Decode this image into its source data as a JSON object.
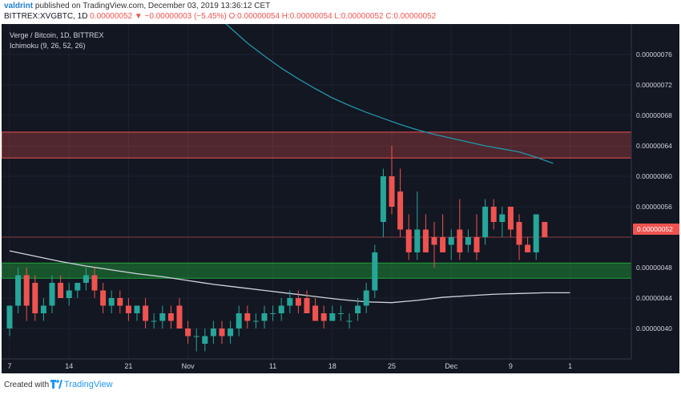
{
  "header": {
    "author": "valdrint",
    "published": "published on TradingView.com, December 03, 2019 13:36:12 CET",
    "quote_prefix": "BITTREX:XVGBTC, 1D",
    "quote_change": "0.00000052 ▼ −0.00000003 (−5.45%)",
    "quote_ohlc": "O:0.00000054 H:0.00000054 L:0.00000052 C:0.00000052"
  },
  "legend": {
    "symbol_line": "Verge / Bitcoin, 1D, BITTREX",
    "indicator_line": "Ichimoku (9, 26, 52, 26)"
  },
  "price_axis": {
    "labels": [
      "0.00000076",
      "0.00000072",
      "0.00000068",
      "0.00000064",
      "0.00000060",
      "0.00000056",
      "0.00000048",
      "0.00000044",
      "0.00000040"
    ],
    "current_price": "0.00000052"
  },
  "time_axis": {
    "labels": [
      "7",
      "14",
      "21",
      "Nov",
      "11",
      "18",
      "25",
      "Dec",
      "9",
      "1"
    ]
  },
  "footer": {
    "created_with": "Created with",
    "brand": "TradingView"
  },
  "colors": {
    "background": "#131722",
    "up": "#26a69a",
    "down": "#ef5350",
    "resistance_zone": "#ef5350",
    "support_zone": "#1fa23a",
    "ma_long": "#2196a8",
    "ma_short": "#d1d4dc"
  },
  "chart_data": {
    "type": "candlestick",
    "title": "Verge / Bitcoin, 1D, BITTREX",
    "ylim": [
      3.6e-07,
      8e-07
    ],
    "zones": [
      {
        "kind": "resistance",
        "y_low": 6.24e-07,
        "y_high": 6.58e-07
      },
      {
        "kind": "support",
        "y_low": 4.66e-07,
        "y_high": 4.86e-07
      }
    ],
    "candles": [
      {
        "o": 4e-07,
        "h": 4.3e-07,
        "l": 3.9e-07,
        "c": 4.3e-07
      },
      {
        "o": 4.3e-07,
        "h": 4.8e-07,
        "l": 4.2e-07,
        "c": 4.7e-07
      },
      {
        "o": 4.7e-07,
        "h": 4.8e-07,
        "l": 4.1e-07,
        "c": 4.3e-07
      },
      {
        "o": 4.6e-07,
        "h": 4.7e-07,
        "l": 4.1e-07,
        "c": 4.2e-07
      },
      {
        "o": 4.2e-07,
        "h": 4.4e-07,
        "l": 4.1e-07,
        "c": 4.3e-07
      },
      {
        "o": 4.3e-07,
        "h": 4.7e-07,
        "l": 4.2e-07,
        "c": 4.6e-07
      },
      {
        "o": 4.6e-07,
        "h": 4.7e-07,
        "l": 4.4e-07,
        "c": 4.4e-07
      },
      {
        "o": 4.4e-07,
        "h": 4.6e-07,
        "l": 4.3e-07,
        "c": 4.5e-07
      },
      {
        "o": 4.5e-07,
        "h": 4.6e-07,
        "l": 4.4e-07,
        "c": 4.6e-07
      },
      {
        "o": 4.6e-07,
        "h": 4.8e-07,
        "l": 4.5e-07,
        "c": 4.7e-07
      },
      {
        "o": 4.7e-07,
        "h": 4.8e-07,
        "l": 4.4e-07,
        "c": 4.5e-07
      },
      {
        "o": 4.5e-07,
        "h": 4.6e-07,
        "l": 4.2e-07,
        "c": 4.3e-07
      },
      {
        "o": 4.3e-07,
        "h": 4.5e-07,
        "l": 4.2e-07,
        "c": 4.4e-07
      },
      {
        "o": 4.4e-07,
        "h": 4.5e-07,
        "l": 4.2e-07,
        "c": 4.3e-07
      },
      {
        "o": 4.3e-07,
        "h": 4.4e-07,
        "l": 4.1e-07,
        "c": 4.2e-07
      },
      {
        "o": 4.2e-07,
        "h": 4.3e-07,
        "l": 4.1e-07,
        "c": 4.3e-07
      },
      {
        "o": 4.3e-07,
        "h": 4.4e-07,
        "l": 4e-07,
        "c": 4.1e-07
      },
      {
        "o": 4.1e-07,
        "h": 4.2e-07,
        "l": 4e-07,
        "c": 4.1e-07
      },
      {
        "o": 4.1e-07,
        "h": 4.3e-07,
        "l": 4e-07,
        "c": 4.2e-07
      },
      {
        "o": 4.2e-07,
        "h": 4.3e-07,
        "l": 4e-07,
        "c": 4.1e-07
      },
      {
        "o": 4.3e-07,
        "h": 4.4e-07,
        "l": 4e-07,
        "c": 4e-07
      },
      {
        "o": 4e-07,
        "h": 4.1e-07,
        "l": 3.8e-07,
        "c": 3.9e-07
      },
      {
        "o": 3.9e-07,
        "h": 4e-07,
        "l": 3.7e-07,
        "c": 3.9e-07
      },
      {
        "o": 3.8e-07,
        "h": 4e-07,
        "l": 3.7e-07,
        "c": 3.9e-07
      },
      {
        "o": 3.9e-07,
        "h": 4.1e-07,
        "l": 3.8e-07,
        "c": 4e-07
      },
      {
        "o": 4e-07,
        "h": 4.1e-07,
        "l": 3.8e-07,
        "c": 3.9e-07
      },
      {
        "o": 3.9e-07,
        "h": 4.1e-07,
        "l": 3.8e-07,
        "c": 4e-07
      },
      {
        "o": 4e-07,
        "h": 4.3e-07,
        "l": 3.9e-07,
        "c": 4.2e-07
      },
      {
        "o": 4.2e-07,
        "h": 4.3e-07,
        "l": 4e-07,
        "c": 4.1e-07
      },
      {
        "o": 4.1e-07,
        "h": 4.2e-07,
        "l": 4e-07,
        "c": 4.1e-07
      },
      {
        "o": 4.1e-07,
        "h": 4.3e-07,
        "l": 4e-07,
        "c": 4.2e-07
      },
      {
        "o": 4.2e-07,
        "h": 4.3e-07,
        "l": 4.1e-07,
        "c": 4.2e-07
      },
      {
        "o": 4.2e-07,
        "h": 4.4e-07,
        "l": 4.1e-07,
        "c": 4.3e-07
      },
      {
        "o": 4.3e-07,
        "h": 4.5e-07,
        "l": 4.2e-07,
        "c": 4.4e-07
      },
      {
        "o": 4.4e-07,
        "h": 4.5e-07,
        "l": 4.2e-07,
        "c": 4.3e-07
      },
      {
        "o": 4.4e-07,
        "h": 4.5e-07,
        "l": 4.2e-07,
        "c": 4.2e-07
      },
      {
        "o": 4.3e-07,
        "h": 4.4e-07,
        "l": 4.1e-07,
        "c": 4.1e-07
      },
      {
        "o": 4.2e-07,
        "h": 4.3e-07,
        "l": 4e-07,
        "c": 4.1e-07
      },
      {
        "o": 4.1e-07,
        "h": 4.3e-07,
        "l": 4.1e-07,
        "c": 4.2e-07
      },
      {
        "o": 4.2e-07,
        "h": 4.3e-07,
        "l": 4.1e-07,
        "c": 4.2e-07
      },
      {
        "o": 4.1e-07,
        "h": 4.2e-07,
        "l": 4e-07,
        "c": 4.1e-07
      },
      {
        "o": 4.2e-07,
        "h": 4.4e-07,
        "l": 4.1e-07,
        "c": 4.3e-07
      },
      {
        "o": 4.3e-07,
        "h": 4.6e-07,
        "l": 4.2e-07,
        "c": 4.5e-07
      },
      {
        "o": 4.5e-07,
        "h": 5.1e-07,
        "l": 4.4e-07,
        "c": 5e-07
      },
      {
        "o": 5.4e-07,
        "h": 6.1e-07,
        "l": 5.2e-07,
        "c": 6e-07
      },
      {
        "o": 6e-07,
        "h": 6.4e-07,
        "l": 5.5e-07,
        "c": 5.6e-07
      },
      {
        "o": 5.8e-07,
        "h": 6.1e-07,
        "l": 5.2e-07,
        "c": 5.3e-07
      },
      {
        "o": 5.3e-07,
        "h": 5.5e-07,
        "l": 4.9e-07,
        "c": 5e-07
      },
      {
        "o": 5e-07,
        "h": 5.8e-07,
        "l": 4.9e-07,
        "c": 5.3e-07
      },
      {
        "o": 5.3e-07,
        "h": 5.5e-07,
        "l": 5e-07,
        "c": 5e-07
      },
      {
        "o": 5.2e-07,
        "h": 5.4e-07,
        "l": 4.8e-07,
        "c": 5.1e-07
      },
      {
        "o": 5.2e-07,
        "h": 5.5e-07,
        "l": 5e-07,
        "c": 5e-07
      },
      {
        "o": 5.1e-07,
        "h": 5.3e-07,
        "l": 4.9e-07,
        "c": 5.2e-07
      },
      {
        "o": 5.3e-07,
        "h": 5.7e-07,
        "l": 4.9e-07,
        "c": 5e-07
      },
      {
        "o": 5.1e-07,
        "h": 5.3e-07,
        "l": 5e-07,
        "c": 5.2e-07
      },
      {
        "o": 5.2e-07,
        "h": 5.5e-07,
        "l": 4.9e-07,
        "c": 5e-07
      },
      {
        "o": 5.2e-07,
        "h": 5.7e-07,
        "l": 5.1e-07,
        "c": 5.6e-07
      },
      {
        "o": 5.6e-07,
        "h": 5.7e-07,
        "l": 5.3e-07,
        "c": 5.4e-07
      },
      {
        "o": 5.4e-07,
        "h": 5.6e-07,
        "l": 5.2e-07,
        "c": 5.5e-07
      },
      {
        "o": 5.6e-07,
        "h": 5.6e-07,
        "l": 5.2e-07,
        "c": 5.3e-07
      },
      {
        "o": 5.4e-07,
        "h": 5.5e-07,
        "l": 4.9e-07,
        "c": 5.1e-07
      },
      {
        "o": 5.1e-07,
        "h": 5.2e-07,
        "l": 5e-07,
        "c": 5e-07
      },
      {
        "o": 5e-07,
        "h": 5.5e-07,
        "l": 4.9e-07,
        "c": 5.5e-07
      },
      {
        "o": 5.4e-07,
        "h": 5.4e-07,
        "l": 5.2e-07,
        "c": 5.2e-07
      }
    ],
    "ma_long": [
      8.15e-07,
      7.95e-07,
      7.75e-07,
      7.58e-07,
      7.42e-07,
      7.28e-07,
      7.15e-07,
      7.03e-07,
      6.93e-07,
      6.84e-07,
      6.76e-07,
      6.68e-07,
      6.61e-07,
      6.55e-07,
      6.5e-07,
      6.45e-07,
      6.4e-07,
      6.36e-07,
      6.32e-07,
      6.25e-07,
      6.17e-07
    ],
    "ma_short": [
      5.02e-07,
      4.95e-07,
      4.88e-07,
      4.82e-07,
      4.77e-07,
      4.72e-07,
      4.68e-07,
      4.63e-07,
      4.58e-07,
      4.54e-07,
      4.5e-07,
      4.46e-07,
      4.42e-07,
      4.38e-07,
      4.35e-07,
      4.34e-07,
      4.37e-07,
      4.41e-07,
      4.43e-07,
      4.45e-07,
      4.46e-07,
      4.47e-07,
      4.47e-07
    ]
  }
}
